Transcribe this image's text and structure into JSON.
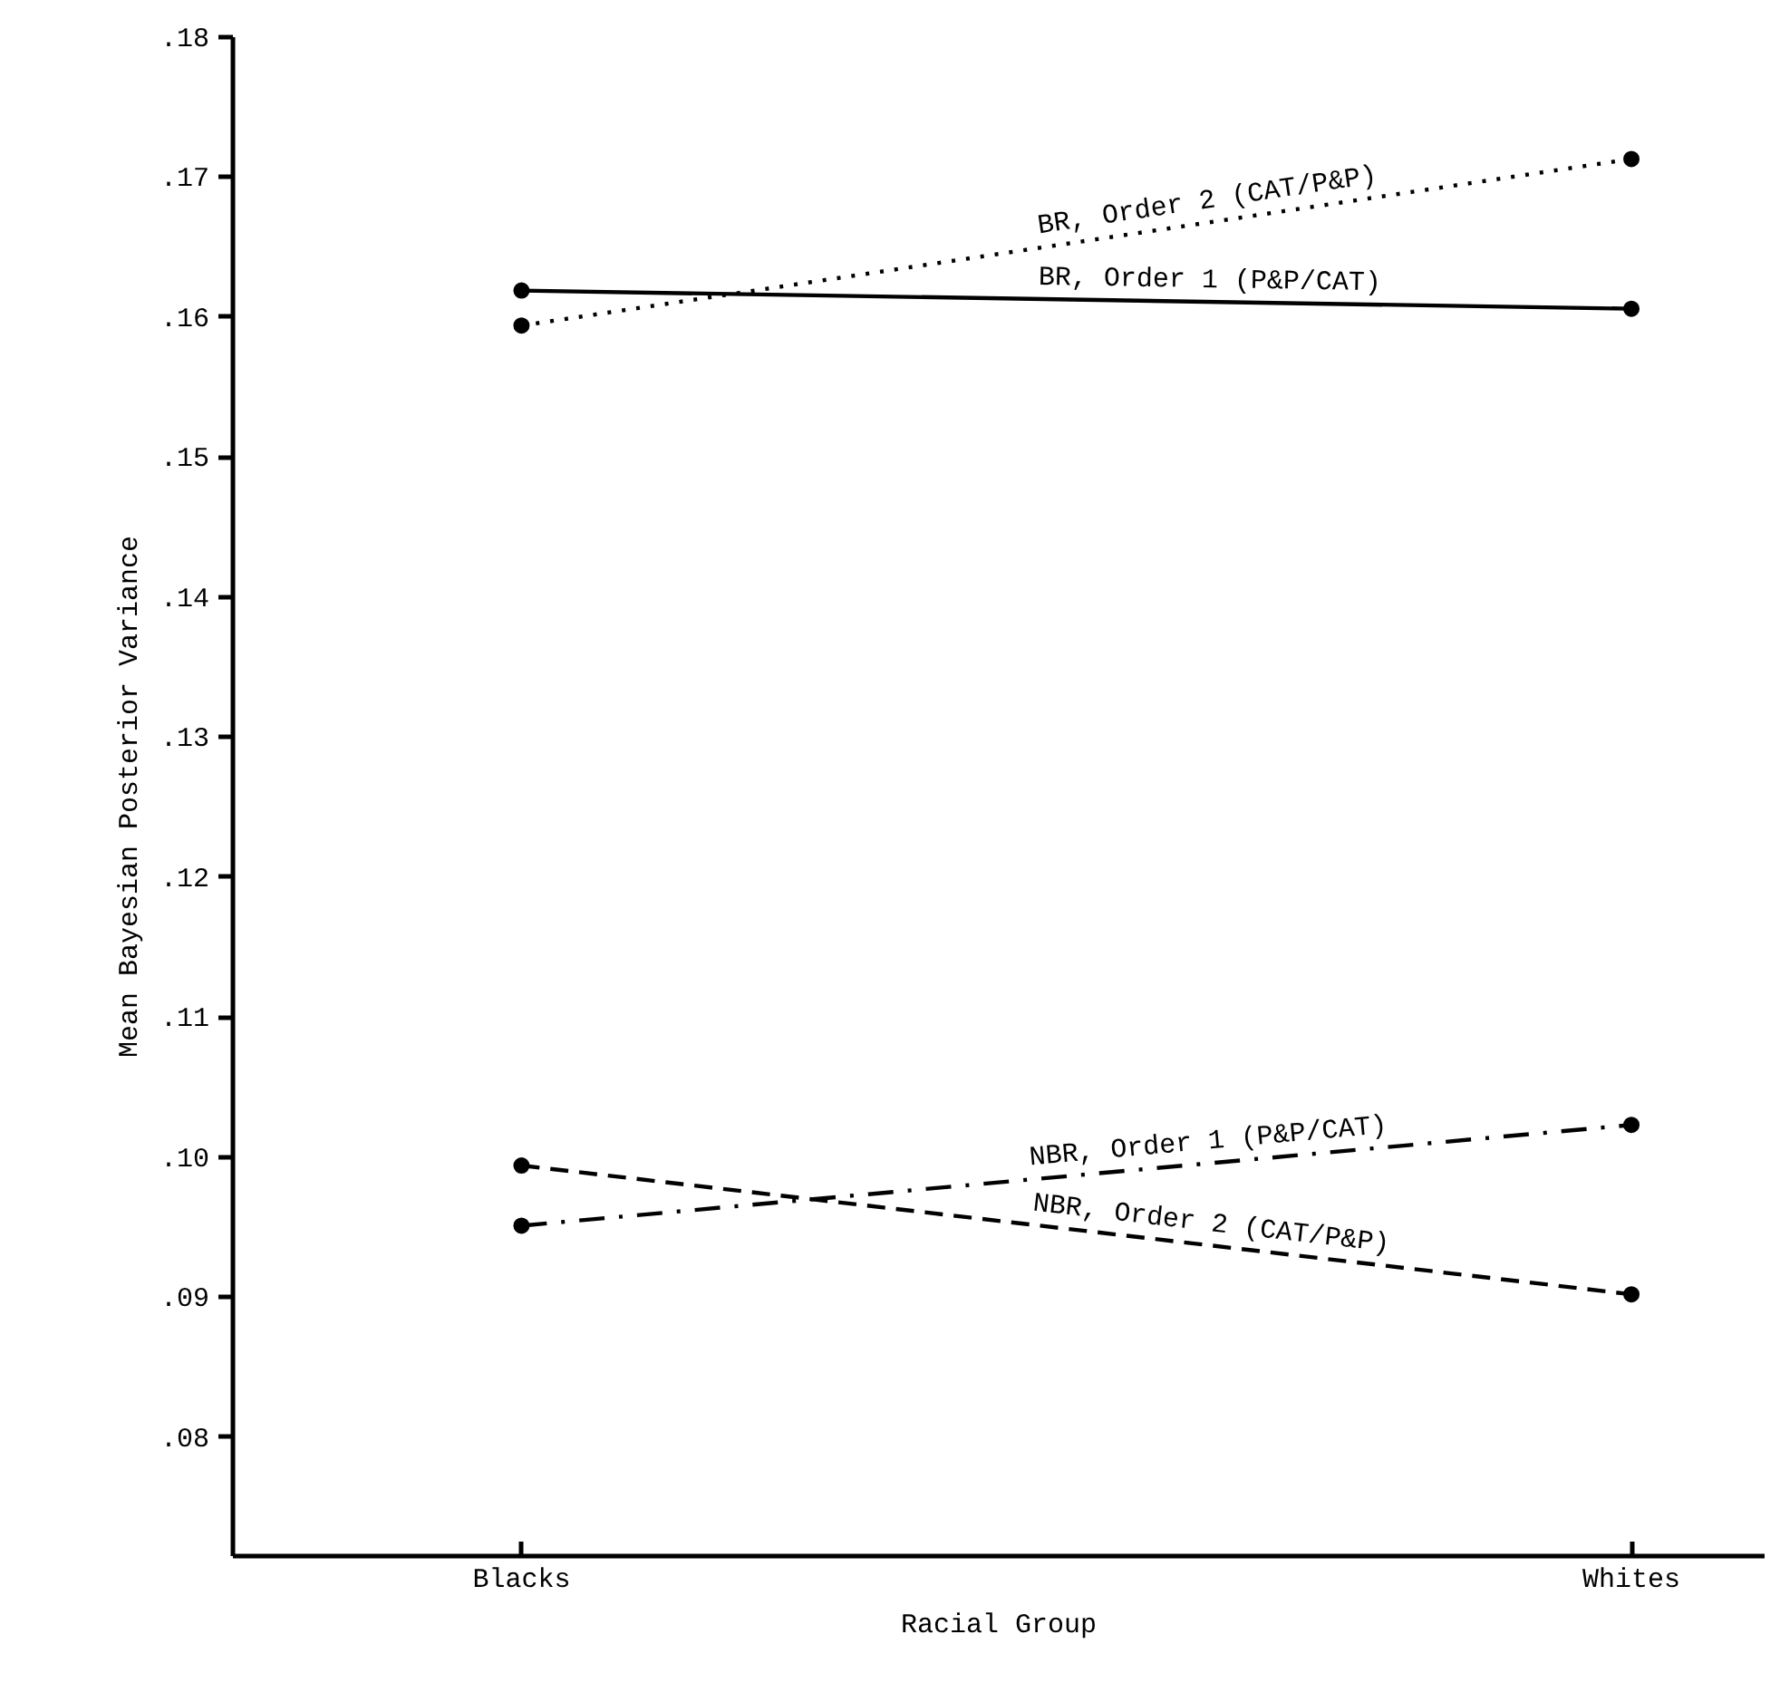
{
  "chart_data": {
    "type": "line",
    "xlabel": "Racial Group",
    "ylabel": "Mean Bayesian Posterior Variance",
    "categories": [
      "Blacks",
      "Whites"
    ],
    "series": [
      {
        "name": "BR, Order 2 (CAT/P&P)",
        "color": "#000000",
        "line_style": "dotted",
        "values": [
          0.1594,
          0.1713
        ]
      },
      {
        "name": "BR, Order 1 (P&P/CAT)",
        "color": "#000000",
        "line_style": "solid",
        "values": [
          0.1619,
          0.1606
        ]
      },
      {
        "name": "NBR, Order 1 (P&P/CAT)",
        "color": "#000000",
        "line_style": "dashdot",
        "values": [
          0.0951,
          0.1023
        ]
      },
      {
        "name": "NBR, Order 2 (CAT/P&P)",
        "color": "#000000",
        "line_style": "dashed",
        "values": [
          0.0994,
          0.0902
        ]
      }
    ],
    "ylim": [
      0.0715,
      0.18
    ],
    "yticks": [
      {
        "value": 0.08,
        "label": ".08"
      },
      {
        "value": 0.09,
        "label": ".09"
      },
      {
        "value": 0.1,
        "label": ".10"
      },
      {
        "value": 0.11,
        "label": ".11"
      },
      {
        "value": 0.12,
        "label": ".12"
      },
      {
        "value": 0.13,
        "label": ".13"
      },
      {
        "value": 0.14,
        "label": ".14"
      },
      {
        "value": 0.15,
        "label": ".15"
      },
      {
        "value": 0.16,
        "label": ".16"
      },
      {
        "value": 0.17,
        "label": ".17"
      },
      {
        "value": 0.18,
        "label": ".18"
      }
    ],
    "marker": "circle"
  }
}
